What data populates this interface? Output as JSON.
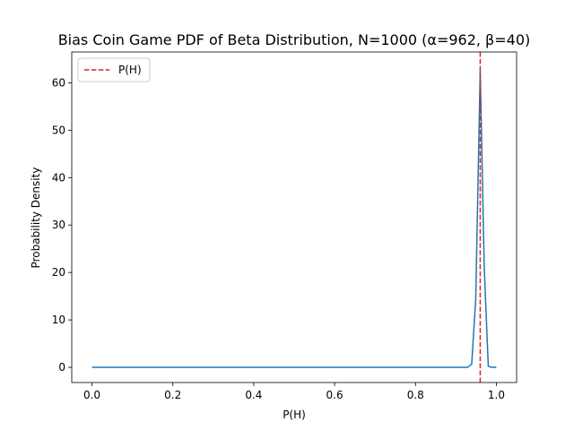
{
  "chart_data": {
    "type": "line",
    "title": "Bias Coin Game PDF of Beta Distribution, N=1000 (α=962, β=40)",
    "xlabel": "P(H)",
    "ylabel": "Probability Density",
    "xlim": [
      -0.05,
      1.05
    ],
    "ylim": [
      -3.2,
      66.5
    ],
    "xticks": [
      "0.0",
      "0.2",
      "0.4",
      "0.6",
      "0.8",
      "1.0"
    ],
    "yticks": [
      "0",
      "10",
      "20",
      "30",
      "40",
      "50",
      "60"
    ],
    "grid": false,
    "legend_position": "top-left",
    "series": [
      {
        "color": "#1f77b4",
        "x": [
          0.0,
          0.1,
          0.2,
          0.3,
          0.4,
          0.5,
          0.6,
          0.7,
          0.8,
          0.9,
          0.929,
          0.939,
          0.949,
          0.96,
          0.97,
          0.98,
          0.99,
          1.0
        ],
        "y": [
          0,
          0,
          0,
          0,
          0,
          0,
          0,
          0,
          0,
          0,
          0,
          0.7,
          14.5,
          62.5,
          21,
          0.2,
          0,
          0
        ]
      }
    ],
    "reference_lines": [
      {
        "name": "P(H)",
        "orientation": "vertical",
        "x": 0.96,
        "style": "dashed",
        "color": "#d62728"
      }
    ]
  }
}
